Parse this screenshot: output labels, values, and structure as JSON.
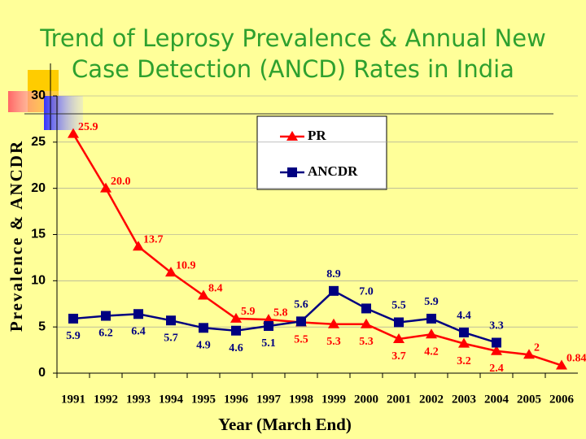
{
  "chart_data": {
    "type": "line",
    "title": "Trend of Leprosy Prevalence & Annual New Case  Detection (ANCD) Rates in India",
    "x_label": "Year (March End)",
    "y_label": "Prevalence & ANCDR",
    "categories": [
      "1991",
      "1992",
      "1993",
      "1994",
      "1995",
      "1996",
      "1997",
      "1998",
      "1999",
      "2000",
      "2001",
      "2002",
      "2003",
      "2004",
      "2005",
      "2006"
    ],
    "series": [
      {
        "name": "PR",
        "color": "#ff0000",
        "marker": "triangle",
        "values": [
          25.9,
          20.0,
          13.7,
          10.9,
          8.4,
          5.9,
          5.8,
          5.5,
          5.3,
          5.3,
          3.7,
          4.2,
          3.2,
          2.4,
          2,
          0.84
        ],
        "value_labels": [
          "25.9",
          "20.0",
          "13.7",
          "10.9",
          "8.4",
          "5.9",
          "5.8",
          "5.5",
          "5.3",
          "5.3",
          "3.7",
          "4.2",
          "3.2",
          "2.4",
          "2",
          "0.84"
        ]
      },
      {
        "name": "ANCDR",
        "color": "#000080",
        "marker": "square",
        "values": [
          5.9,
          6.2,
          6.4,
          5.7,
          4.9,
          4.6,
          5.1,
          5.6,
          8.9,
          7.0,
          5.5,
          5.9,
          4.4,
          3.3,
          null,
          null
        ],
        "value_labels": [
          "5.9",
          "6.2",
          "6.4",
          "5.7",
          "4.9",
          "4.6",
          "5.1",
          "5.6",
          "8.9",
          "7.0",
          "5.5",
          "5.9",
          "4.4",
          "3.3",
          null,
          null
        ]
      }
    ],
    "ylim": [
      0,
      30
    ],
    "yticks": [
      0,
      5,
      10,
      15,
      20,
      25,
      30
    ],
    "grid": true
  }
}
